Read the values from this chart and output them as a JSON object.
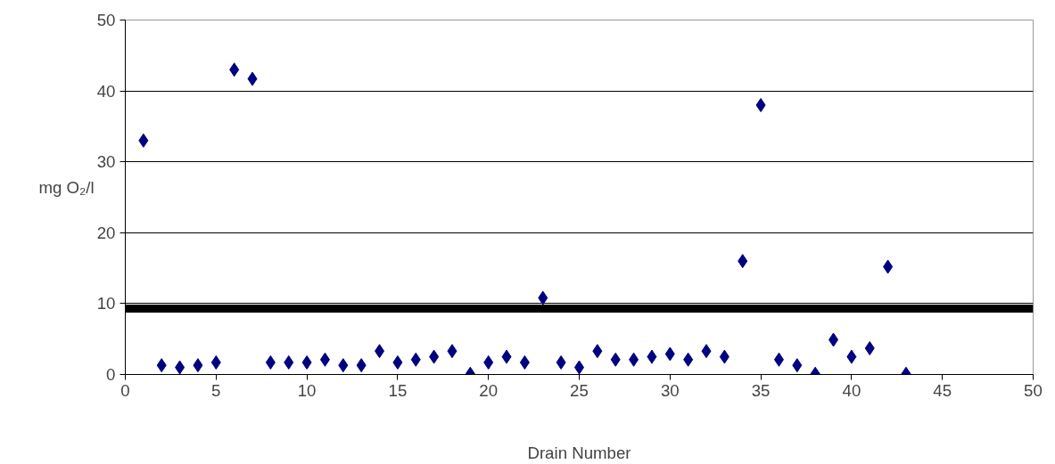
{
  "chart_data": {
    "type": "scatter",
    "xlabel": "Drain Number",
    "ylabel": "mg O₂/l",
    "x": [
      1,
      2,
      3,
      4,
      5,
      6,
      7,
      8,
      9,
      10,
      11,
      12,
      13,
      14,
      15,
      16,
      17,
      18,
      19,
      20,
      21,
      22,
      23,
      24,
      25,
      26,
      27,
      28,
      29,
      30,
      31,
      32,
      33,
      34,
      35,
      36,
      37,
      38,
      39,
      40,
      41,
      42,
      43
    ],
    "series": [
      {
        "color": "#000080",
        "values": [
          33,
          1.3,
          1,
          1.3,
          1.7,
          43,
          41.7,
          1.7,
          1.7,
          1.7,
          2.1,
          1.3,
          1.3,
          3.3,
          1.7,
          2.1,
          2.5,
          3.3,
          0.1,
          1.7,
          2.5,
          1.7,
          10.8,
          1.7,
          1,
          3.3,
          2.1,
          2.1,
          2.5,
          2.9,
          2.1,
          3.3,
          2.5,
          16,
          38,
          2.1,
          1.3,
          0.1,
          4.9,
          2.5,
          3.7,
          15.2,
          0.1
        ]
      }
    ],
    "xlim": [
      0,
      50
    ],
    "xticks": [
      0,
      5,
      10,
      15,
      20,
      25,
      30,
      35,
      40,
      45,
      50
    ],
    "ylim": [
      0,
      50
    ],
    "yticks": [
      0,
      10,
      20,
      30,
      40,
      50
    ],
    "ref_lines": [
      {
        "axis": "y",
        "value": 9.3,
        "color": "#000000"
      }
    ],
    "grid": "y",
    "marker": "diamond"
  }
}
